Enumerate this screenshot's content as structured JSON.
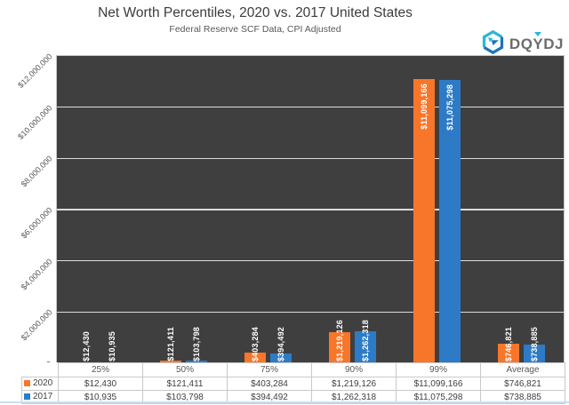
{
  "header": {
    "title": "Net Worth Percentiles, 2020 vs. 2017 United States",
    "subtitle": "Federal Reserve SCF Data, CPI Adjusted"
  },
  "logo": {
    "part1": "DQ",
    "part2": "Y",
    "part3": "DJ",
    "teal": "#2bb7d6",
    "blue": "#1c75bc",
    "text_color": "#6b6c6f"
  },
  "chart_data": {
    "type": "bar",
    "title": "Net Worth Percentiles, 2020 vs. 2017 United States",
    "subtitle": "Federal Reserve SCF Data, CPI Adjusted",
    "categories": [
      "25%",
      "50%",
      "75%",
      "90%",
      "99%",
      "Average"
    ],
    "series": [
      {
        "name": "2020",
        "color": "#f87629",
        "values": [
          12430,
          121411,
          403284,
          1219126,
          11099166,
          746821
        ],
        "formatted": [
          "$12,430",
          "$121,411",
          "$403,284",
          "$1,219,126",
          "$11,099,166",
          "$746,821"
        ]
      },
      {
        "name": "2017",
        "color": "#2d7bc6",
        "values": [
          10935,
          103798,
          394492,
          1262318,
          11075298,
          738885
        ],
        "formatted": [
          "$10,935",
          "$103,798",
          "$394,492",
          "$1,262,318",
          "$11,075,298",
          "$738,885"
        ]
      }
    ],
    "ylim": [
      0,
      12000000
    ],
    "ytick_labels": [
      "$12,000,000",
      "$10,000,000",
      "$8,000,000",
      "$6,000,000",
      "$4,000,000",
      "$2,000,000",
      "$0"
    ],
    "plot_background": "#3f3f3f",
    "gridline_color": "#dcdcdc",
    "grid": "horizontal",
    "legend_position": "table-left",
    "value_label_color": "#ffffff"
  }
}
